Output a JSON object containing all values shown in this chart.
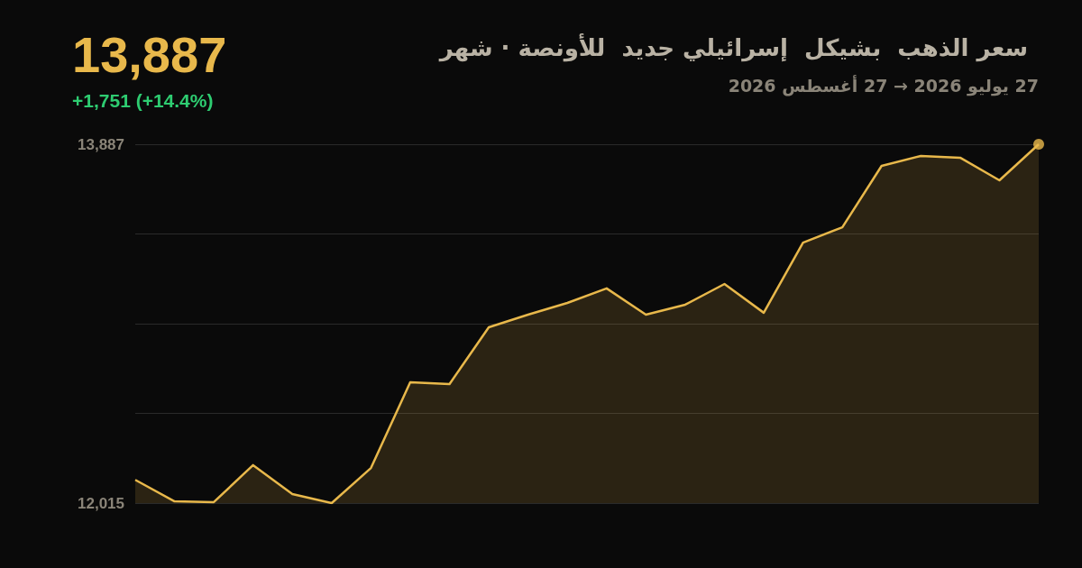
{
  "chart_data": {
    "type": "area",
    "title": "سعر الذهب  بشيكل  إسرائيلي جديد  للأونصة · شهر",
    "subtitle": "27 يوليو 2026 → 27 أغسطس 2026",
    "annotations": [
      "13,887",
      "+1,751 (+14.4%)"
    ],
    "categories": [
      null,
      null,
      null,
      null,
      null,
      null,
      null,
      null,
      null,
      null,
      null,
      null,
      null,
      null,
      null,
      null,
      null,
      null,
      null,
      null,
      null,
      null,
      null,
      null
    ],
    "ylim": [
      12015,
      13887
    ],
    "yticks": [
      {
        "value": 12015,
        "label": "12,015"
      },
      {
        "value": 12483,
        "label": null
      },
      {
        "value": 12951,
        "label": null
      },
      {
        "value": 13419,
        "label": null
      },
      {
        "value": 13887,
        "label": "13,887"
      }
    ],
    "grid": "y",
    "tick_labels": "y",
    "series": [
      {
        "type": "area",
        "color": "#e8b84b",
        "values": [
          12136,
          12024,
          12020,
          12213,
          12062,
          12015,
          12198,
          12645,
          12636,
          12932,
          12998,
          13059,
          13135,
          12998,
          13050,
          13158,
          13008,
          13374,
          13454,
          13774,
          13826,
          13817,
          13699,
          13887
        ]
      },
      {
        "type": "scatter",
        "color": "#e8b84b",
        "marker": "circle",
        "values": [
          null,
          null,
          null,
          null,
          null,
          null,
          null,
          null,
          null,
          null,
          null,
          null,
          null,
          null,
          null,
          null,
          null,
          null,
          null,
          null,
          null,
          null,
          null,
          13887
        ]
      }
    ]
  }
}
